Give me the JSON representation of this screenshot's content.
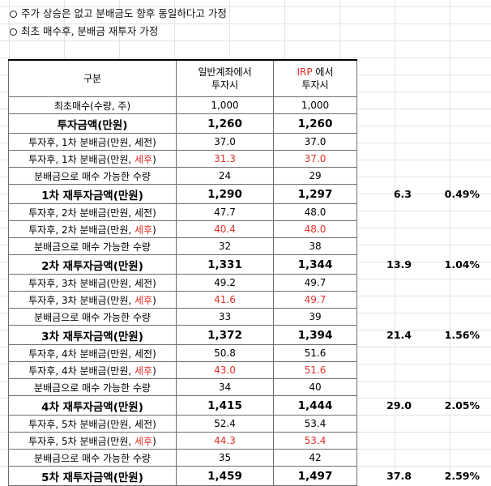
{
  "notes": [
    "주가 상승은 없고 분배금도 향후 동일하다고 가정",
    "최초 매수후, 분배금 재투자 가정"
  ],
  "table": {
    "header": {
      "label": "구분",
      "col1_line1": "일반계좌에서",
      "col1_line2": "투자시",
      "col2_red": "IRP",
      "col2_line1_rest": " 에서",
      "col2_line2": "투자시"
    },
    "rows": [
      {
        "label": "최초매수(수량, 주)",
        "v1": "1,000",
        "v2": "1,000"
      },
      {
        "label": "투자금액(만원)",
        "v1": "1,260",
        "v2": "1,260"
      },
      {
        "label": "투자후, 1차 분배금(만원, 세전)",
        "v1": "37.0",
        "v2": "37.0"
      },
      {
        "label_prefix": "투자후, 1차 분배금(만원, ",
        "label_red": "세후",
        "label_suffix": ")",
        "v1": "31.3",
        "v2": "37.0"
      },
      {
        "label": "분배금으로 매수 가능한 수량",
        "v1": "24",
        "v2": "29"
      },
      {
        "label": "1차 재투자금액(만원)",
        "v1": "1,290",
        "v2": "1,297",
        "diff": "6.3",
        "pct": "0.49%"
      },
      {
        "label": "투자후, 2차 분배금(만원, 세전)",
        "v1": "47.7",
        "v2": "48.0"
      },
      {
        "label_prefix": "투자후, 2차 분배금(만원, ",
        "label_red": "세후",
        "label_suffix": ")",
        "v1": "40.4",
        "v2": "48.0"
      },
      {
        "label": "분배금으로 매수 가능한 수량",
        "v1": "32",
        "v2": "38"
      },
      {
        "label": "2차 재투자금액(만원)",
        "v1": "1,331",
        "v2": "1,344",
        "diff": "13.9",
        "pct": "1.04%"
      },
      {
        "label": "투자후, 3차 분배금(만원, 세전)",
        "v1": "49.2",
        "v2": "49.7"
      },
      {
        "label_prefix": "투자후, 3차 분배금(만원, ",
        "label_red": "세후",
        "label_suffix": ")",
        "v1": "41.6",
        "v2": "49.7"
      },
      {
        "label": "분배금으로 매수 가능한 수량",
        "v1": "33",
        "v2": "39"
      },
      {
        "label": "3차 재투자금액(만원)",
        "v1": "1,372",
        "v2": "1,394",
        "diff": "21.4",
        "pct": "1.56%"
      },
      {
        "label": "투자후, 4차 분배금(만원, 세전)",
        "v1": "50.8",
        "v2": "51.6"
      },
      {
        "label_prefix": "투자후, 4차 분배금(만원, ",
        "label_red": "세후",
        "label_suffix": ")",
        "v1": "43.0",
        "v2": "51.6"
      },
      {
        "label": "분배금으로 매수 가능한 수량",
        "v1": "34",
        "v2": "40"
      },
      {
        "label": "4차 재투자금액(만원)",
        "v1": "1,415",
        "v2": "1,444",
        "diff": "29.0",
        "pct": "2.05%"
      },
      {
        "label": "투자후, 5차 분배금(만원, 세전)",
        "v1": "52.4",
        "v2": "53.4"
      },
      {
        "label_prefix": "투자후, 5차 분배금(만원, ",
        "label_red": "세후",
        "label_suffix": ")",
        "v1": "44.3",
        "v2": "53.4"
      },
      {
        "label": "분배금으로 매수 가능한 수량",
        "v1": "35",
        "v2": "42"
      },
      {
        "label": "5차 재투자금액(만원)",
        "v1": "1,459",
        "v2": "1,497",
        "diff": "37.8",
        "pct": "2.59%"
      }
    ]
  }
}
